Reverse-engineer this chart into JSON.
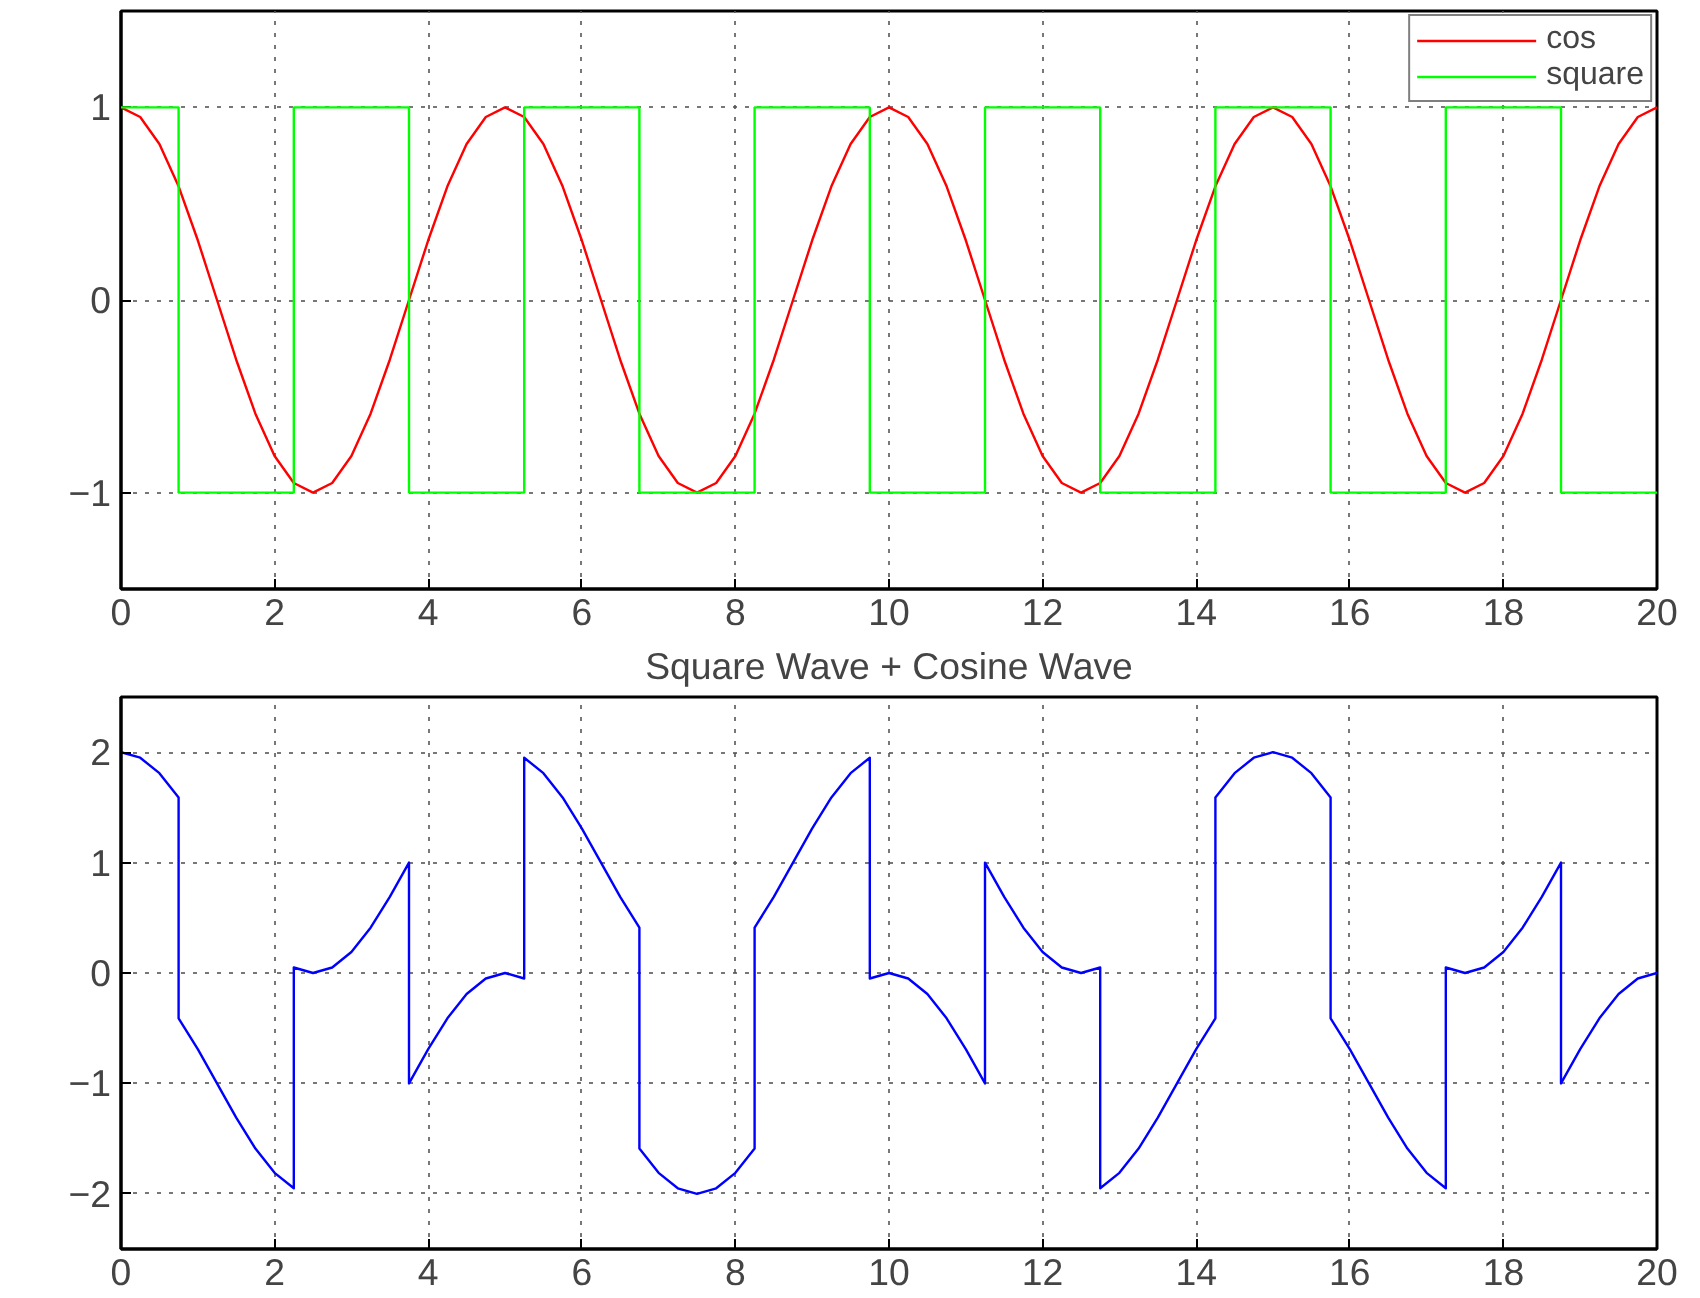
{
  "chart_data": [
    {
      "type": "line",
      "xlim": [
        0,
        20
      ],
      "ylim": [
        -1.5,
        1.5
      ],
      "xticks": [
        0,
        2,
        4,
        6,
        8,
        10,
        12,
        14,
        16,
        18,
        20
      ],
      "yticks": [
        -1,
        0,
        1
      ],
      "grid": true,
      "legend": "top right",
      "series": [
        {
          "name": "cos",
          "color": "#ff0000",
          "x": [
            0,
            0.25,
            0.5,
            0.75,
            1,
            1.25,
            1.5,
            1.75,
            2,
            2.25,
            2.5,
            2.75,
            3,
            3.25,
            3.5,
            3.75,
            4,
            4.25,
            4.5,
            4.75,
            5,
            5.25,
            5.5,
            5.75,
            6,
            6.25,
            6.5,
            6.75,
            7,
            7.25,
            7.5,
            7.75,
            8,
            8.25,
            8.5,
            8.75,
            9,
            9.25,
            9.5,
            9.75,
            10,
            10.25,
            10.5,
            10.75,
            11,
            11.25,
            11.5,
            11.75,
            12,
            12.25,
            12.5,
            12.75,
            13,
            13.25,
            13.5,
            13.75,
            14,
            14.25,
            14.5,
            14.75,
            15,
            15.25,
            15.5,
            15.75,
            16,
            16.25,
            16.5,
            16.75,
            17,
            17.25,
            17.5,
            17.75,
            18,
            18.25,
            18.5,
            18.75,
            19,
            19.25,
            19.5,
            19.75,
            20
          ],
          "values": [
            1,
            0.95,
            0.81,
            0.59,
            0.31,
            0,
            -0.31,
            -0.59,
            -0.81,
            -0.95,
            -1,
            -0.95,
            -0.81,
            -0.59,
            -0.31,
            0,
            0.31,
            0.59,
            0.81,
            0.95,
            1,
            0.95,
            0.81,
            0.59,
            0.31,
            0,
            -0.31,
            -0.59,
            -0.81,
            -0.95,
            -1,
            -0.95,
            -0.81,
            -0.59,
            -0.31,
            0,
            0.31,
            0.59,
            0.81,
            0.95,
            1,
            0.95,
            0.81,
            0.59,
            0.31,
            0,
            -0.31,
            -0.59,
            -0.81,
            -0.95,
            -1,
            -0.95,
            -0.81,
            -0.59,
            -0.31,
            0,
            0.31,
            0.59,
            0.81,
            0.95,
            1,
            0.95,
            0.81,
            0.59,
            0.31,
            0,
            -0.31,
            -0.59,
            -0.81,
            -0.95,
            -1,
            -0.95,
            -0.81,
            -0.59,
            -0.31,
            0,
            0.31,
            0.59,
            0.81,
            0.95,
            1
          ]
        },
        {
          "name": "square",
          "color": "#00ff00",
          "type": "step",
          "x": [
            0,
            0.75,
            2.25,
            3.75,
            5.25,
            6.75,
            8.25,
            9.75,
            11.25,
            12.75,
            14.25,
            15.75,
            17.25,
            18.75,
            20
          ],
          "values": [
            1,
            -1,
            1,
            -1,
            1,
            -1,
            1,
            -1,
            1,
            -1,
            1,
            -1,
            1,
            -1,
            -1
          ]
        }
      ]
    },
    {
      "type": "line",
      "title": "Square Wave + Cosine Wave",
      "xlim": [
        0,
        20
      ],
      "ylim": [
        -2.5,
        2.5
      ],
      "xticks": [
        0,
        2,
        4,
        6,
        8,
        10,
        12,
        14,
        16,
        18,
        20
      ],
      "yticks": [
        -2,
        -1,
        0,
        1,
        2
      ],
      "grid": true,
      "series": [
        {
          "color": "#0000ff",
          "x": [
            0,
            0.25,
            0.5,
            0.75,
            0.75,
            1,
            1.25,
            1.5,
            1.75,
            2,
            2.25,
            2.25,
            2.5,
            2.75,
            3,
            3.25,
            3.5,
            3.75,
            3.75,
            4,
            4.25,
            4.5,
            4.75,
            5,
            5.25,
            5.25,
            5.5,
            5.75,
            6,
            6.25,
            6.5,
            6.75,
            6.75,
            7,
            7.25,
            7.5,
            7.75,
            8,
            8.25,
            8.25,
            8.5,
            8.75,
            9,
            9.25,
            9.5,
            9.75,
            9.75,
            10,
            10.25,
            10.5,
            10.75,
            11,
            11.25,
            11.25,
            11.5,
            11.75,
            12,
            12.25,
            12.5,
            12.75,
            12.75,
            13,
            13.25,
            13.5,
            13.75,
            14,
            14.25,
            14.25,
            14.5,
            14.75,
            15,
            15.25,
            15.5,
            15.75,
            15.75,
            16,
            16.25,
            16.5,
            16.75,
            17,
            17.25,
            17.25,
            17.5,
            17.75,
            18,
            18.25,
            18.5,
            18.75,
            18.75,
            19,
            19.25,
            19.5,
            19.75,
            20
          ],
          "values": [
            2,
            1.95,
            1.81,
            1.59,
            -0.41,
            -0.69,
            -1,
            -1.31,
            -1.59,
            -1.81,
            -1.95,
            0.05,
            0,
            0.05,
            0.19,
            0.41,
            0.69,
            1,
            -1,
            -0.69,
            -0.41,
            -0.19,
            -0.05,
            0,
            -0.05,
            1.95,
            1.81,
            1.59,
            1.31,
            1,
            0.69,
            0.41,
            -1.59,
            -1.81,
            -1.95,
            -2,
            -1.95,
            -1.81,
            -1.59,
            0.41,
            0.69,
            1,
            1.31,
            1.59,
            1.81,
            1.95,
            -0.05,
            0,
            -0.05,
            -0.19,
            -0.41,
            -0.69,
            -1,
            1,
            0.69,
            0.41,
            0.19,
            0.05,
            0,
            0.05,
            -1.95,
            -1.81,
            -1.59,
            -1.31,
            -1,
            -0.69,
            -0.41,
            1.59,
            1.81,
            1.95,
            2,
            1.95,
            1.81,
            1.59,
            -0.41,
            -0.69,
            -1,
            -1.31,
            -1.59,
            -1.81,
            -1.95,
            0.05,
            0,
            0.05,
            0.19,
            0.41,
            0.69,
            1,
            -1,
            -0.69,
            -0.41,
            -0.19,
            -0.05,
            0
          ]
        }
      ]
    }
  ]
}
